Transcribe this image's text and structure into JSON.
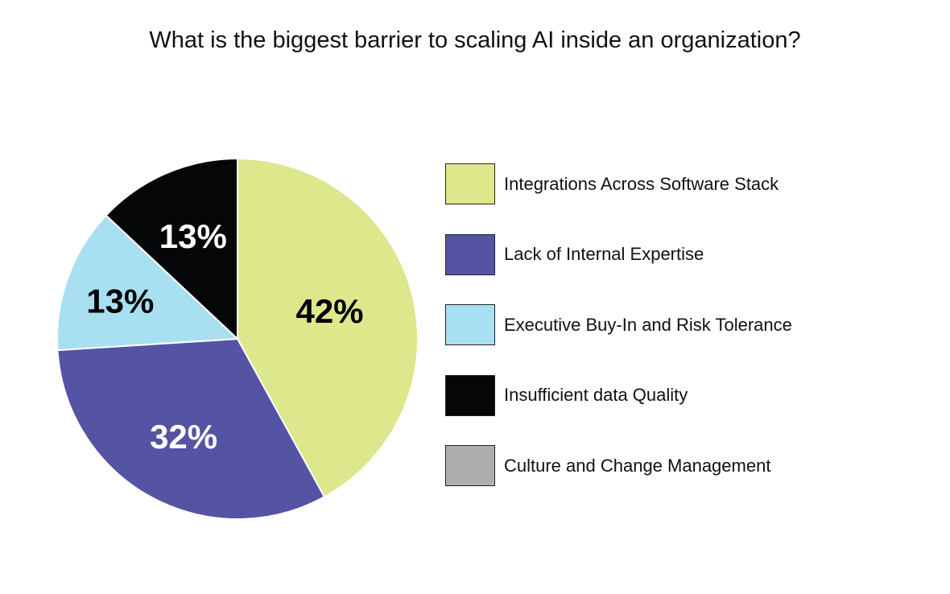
{
  "chart_data": {
    "type": "pie",
    "title": "What is the biggest barrier to scaling AI inside an organization?",
    "slices": [
      {
        "label": "Integrations Across Software Stack",
        "value": 42,
        "value_label": "42%",
        "color": "#dde78c",
        "label_color": "#000000"
      },
      {
        "label": "Lack of Internal Expertise",
        "value": 32,
        "value_label": "32%",
        "color": "#5553a3",
        "label_color": "#ffffff"
      },
      {
        "label": "Executive Buy-In and Risk Tolerance",
        "value": 13,
        "value_label": "13%",
        "color": "#a8e0f2",
        "label_color": "#000000"
      },
      {
        "label": "Insufficient data Quality",
        "value": 13,
        "value_label": "13%",
        "color": "#050607",
        "label_color": "#ffffff"
      },
      {
        "label": "Culture and Change Management",
        "value": 0,
        "value_label": "",
        "color": "#aeaeb0",
        "label_color": "#000000"
      }
    ],
    "start": "12 o'clock",
    "direction": "clockwise",
    "legend_position": "right"
  }
}
